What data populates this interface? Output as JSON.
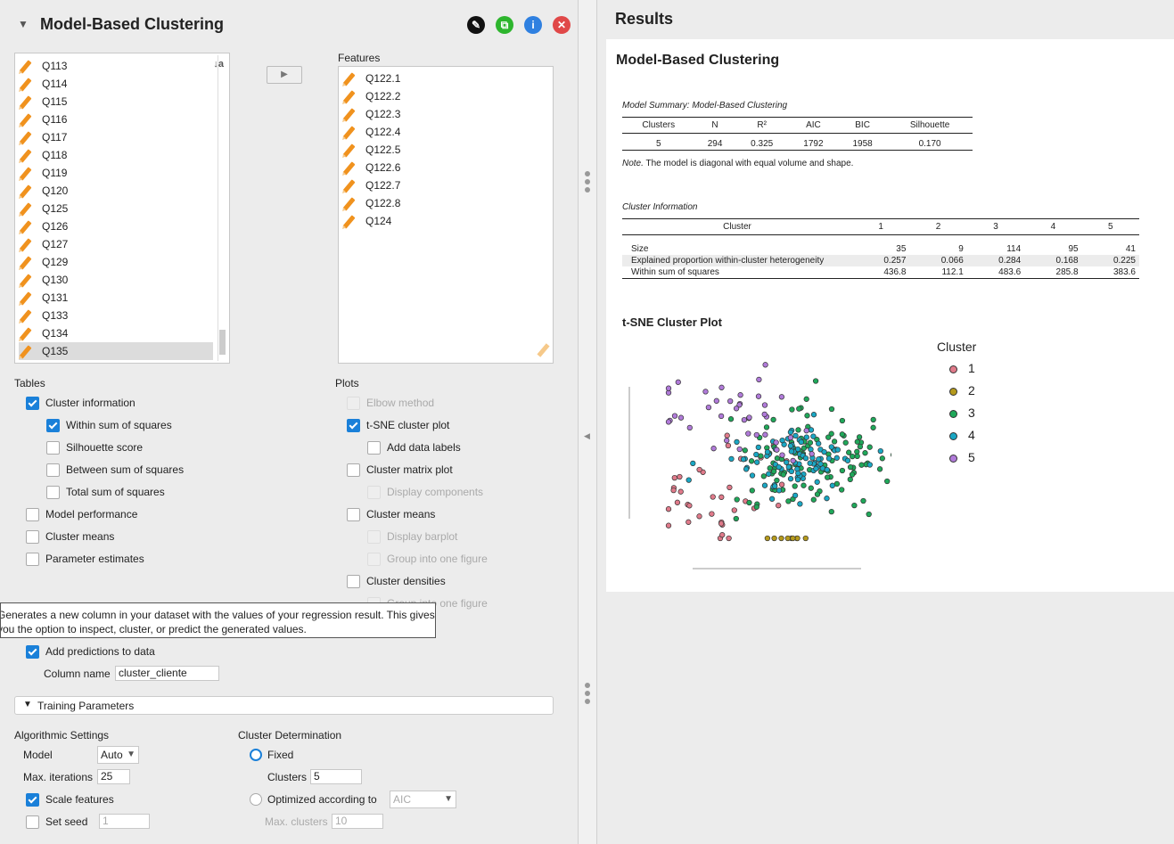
{
  "analysis": {
    "title": "Model-Based Clustering"
  },
  "variables": {
    "available": [
      "Q113",
      "Q114",
      "Q115",
      "Q116",
      "Q117",
      "Q118",
      "Q119",
      "Q120",
      "Q125",
      "Q126",
      "Q127",
      "Q129",
      "Q130",
      "Q131",
      "Q133",
      "Q134",
      "Q135"
    ],
    "features_label": "Features",
    "features": [
      "Q122.1",
      "Q122.2",
      "Q122.3",
      "Q122.4",
      "Q122.5",
      "Q122.6",
      "Q122.7",
      "Q122.8",
      "Q124"
    ]
  },
  "tables": {
    "label": "Tables",
    "cluster_information": "Cluster information",
    "within_ss": "Within sum of squares",
    "silhouette": "Silhouette score",
    "between_ss": "Between sum of squares",
    "total_ss": "Total sum of squares",
    "model_performance": "Model performance",
    "cluster_means": "Cluster means",
    "parameter_estimates": "Parameter estimates"
  },
  "plots": {
    "label": "Plots",
    "elbow": "Elbow method",
    "tsne": "t-SNE cluster plot",
    "data_labels": "Add data labels",
    "matrix": "Cluster matrix plot",
    "display_components": "Display components",
    "means": "Cluster means",
    "barplot": "Display barplot",
    "group_one": "Group into one figure",
    "densities": "Cluster densities",
    "group_one_2": "Group into one figure"
  },
  "tooltip": {
    "line1": "Generates a new column in your dataset with the values of your regression result. This gives",
    "line2": "you the option to inspect, cluster, or predict the generated values."
  },
  "predictions": {
    "add_label": "Add predictions to data",
    "column_name_label": "Column name",
    "column_name_value": "cluster_cliente"
  },
  "training": {
    "section": "Training Parameters",
    "algorithmic": "Algorithmic Settings",
    "model_label": "Model",
    "model_value": "Auto",
    "max_iter_label": "Max. iterations",
    "max_iter_value": "25",
    "scale_features": "Scale features",
    "set_seed": "Set seed",
    "seed_value": "1",
    "cluster_determination": "Cluster Determination",
    "fixed": "Fixed",
    "clusters_label": "Clusters",
    "clusters_value": "5",
    "optimized": "Optimized according to",
    "optimized_value": "AIC",
    "max_clusters_label": "Max. clusters",
    "max_clusters_value": "10"
  },
  "results": {
    "header": "Results",
    "title": "Model-Based Clustering",
    "summary_caption": "Model Summary: Model-Based Clustering",
    "summary_headers": [
      "Clusters",
      "N",
      "R²",
      "AIC",
      "BIC",
      "Silhouette"
    ],
    "summary_row": [
      "5",
      "294",
      "0.325",
      "1792",
      "1958",
      "0.170"
    ],
    "note_prefix": "Note.",
    "note_text": " The model is diagonal with equal volume and shape.",
    "info_caption": "Cluster Information",
    "info_headers": [
      "Cluster",
      "1",
      "2",
      "3",
      "4",
      "5"
    ],
    "info_rows": [
      [
        "Size",
        "35",
        "9",
        "114",
        "95",
        "41"
      ],
      [
        "Explained proportion within-cluster heterogeneity",
        "0.257",
        "0.066",
        "0.284",
        "0.168",
        "0.225"
      ],
      [
        "Within sum of squares",
        "436.8",
        "112.1",
        "483.6",
        "285.8",
        "383.6"
      ]
    ],
    "plot_title": "t-SNE Cluster Plot",
    "legend_title": "Cluster",
    "legend": [
      {
        "label": "1",
        "color": "#e07a8a"
      },
      {
        "label": "2",
        "color": "#b59a1c"
      },
      {
        "label": "3",
        "color": "#1fa85a"
      },
      {
        "label": "4",
        "color": "#1aa7c4"
      },
      {
        "label": "5",
        "color": "#b07ad9"
      }
    ]
  }
}
